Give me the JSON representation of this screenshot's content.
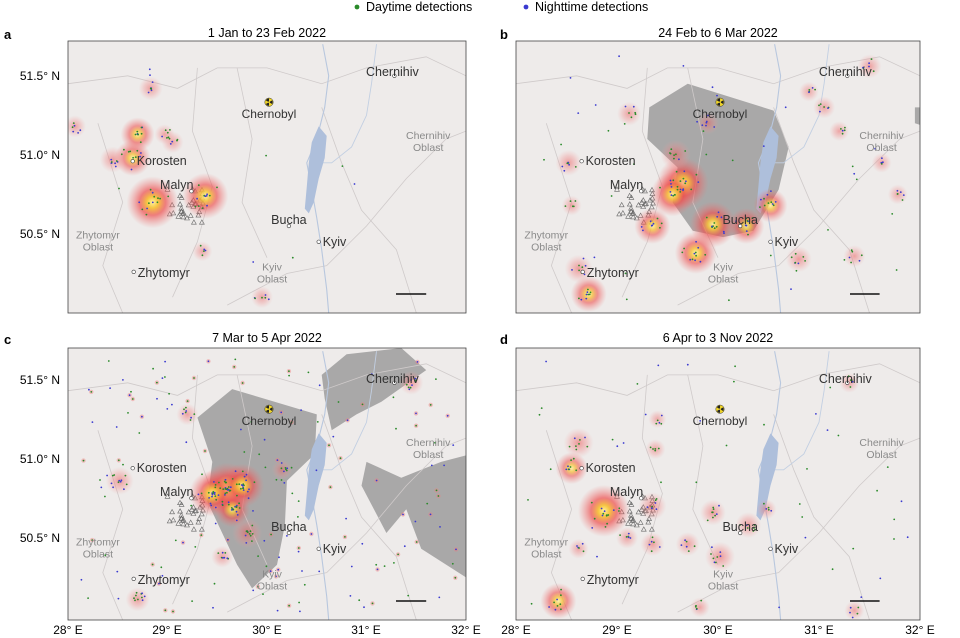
{
  "legend": {
    "day": {
      "label": "Daytime detections",
      "color": "#2a8a2a"
    },
    "night": {
      "label": "Nighttime detections",
      "color": "#3a3ad0"
    }
  },
  "axes": {
    "lon_ticks": [
      {
        "value": 28,
        "label": "28° E"
      },
      {
        "value": 29,
        "label": "29° E"
      },
      {
        "value": 30,
        "label": "30° E"
      },
      {
        "value": 31,
        "label": "31° E"
      },
      {
        "value": 32,
        "label": "32° E"
      }
    ],
    "lat_ticks": [
      {
        "value": 51.5,
        "label": "51.5° N"
      },
      {
        "value": 51.0,
        "label": "51.0° N"
      },
      {
        "value": 50.5,
        "label": "50.5° N"
      }
    ]
  },
  "panels": [
    {
      "letter": "a",
      "title": "1 Jan to 23 Feb 2022",
      "occupied": false,
      "places": [
        {
          "name": "Chernihiv",
          "lon": 31.28,
          "lat": 51.5,
          "kind": "city"
        },
        {
          "name": "Chernobyl",
          "lon": 30.02,
          "lat": 51.27,
          "kind": "plant"
        },
        {
          "name": "Korosten",
          "lon": 28.65,
          "lat": 50.96,
          "kind": "city"
        },
        {
          "name": "Malyn",
          "lon": 29.24,
          "lat": 50.77,
          "kind": "city"
        },
        {
          "name": "Bucha",
          "lon": 30.22,
          "lat": 50.55,
          "kind": "city"
        },
        {
          "name": "Kyiv",
          "lon": 30.52,
          "lat": 50.45,
          "kind": "city"
        },
        {
          "name": "Zhytomyr",
          "lon": 28.66,
          "lat": 50.26,
          "kind": "city"
        }
      ],
      "regions": [
        {
          "name": "Zhytomyr\nOblast",
          "lon": 28.3,
          "lat": 50.47
        },
        {
          "name": "Chernihiv\nOblast",
          "lon": 31.62,
          "lat": 51.1
        },
        {
          "name": "Kyiv\nOblast",
          "lon": 30.05,
          "lat": 50.27
        }
      ],
      "fires": [
        {
          "lon": 28.85,
          "lat": 50.7,
          "i": 1.0
        },
        {
          "lon": 29.38,
          "lat": 50.74,
          "i": 0.85
        },
        {
          "lon": 28.65,
          "lat": 50.98,
          "i": 0.6
        },
        {
          "lon": 28.7,
          "lat": 51.13,
          "i": 0.55
        },
        {
          "lon": 28.45,
          "lat": 50.97,
          "i": 0.35
        },
        {
          "lon": 28.83,
          "lat": 51.42,
          "i": 0.3
        },
        {
          "lon": 28.07,
          "lat": 51.18,
          "i": 0.25
        },
        {
          "lon": 29.05,
          "lat": 51.08,
          "i": 0.25
        },
        {
          "lon": 29.35,
          "lat": 50.39,
          "i": 0.2
        },
        {
          "lon": 28.97,
          "lat": 51.13,
          "i": 0.2
        },
        {
          "lon": 29.95,
          "lat": 50.1,
          "i": 0.25
        }
      ]
    },
    {
      "letter": "b",
      "title": "24 Feb to 6 Mar 2022",
      "occupied": true,
      "places": [
        {
          "name": "Chernihiv",
          "lon": 31.28,
          "lat": 51.5,
          "kind": "city"
        },
        {
          "name": "Chernobyl",
          "lon": 30.02,
          "lat": 51.27,
          "kind": "plant"
        },
        {
          "name": "Korosten",
          "lon": 28.65,
          "lat": 50.96,
          "kind": "city"
        },
        {
          "name": "Malyn",
          "lon": 29.24,
          "lat": 50.77,
          "kind": "city"
        },
        {
          "name": "Bucha",
          "lon": 30.22,
          "lat": 50.55,
          "kind": "city"
        },
        {
          "name": "Kyiv",
          "lon": 30.52,
          "lat": 50.45,
          "kind": "city"
        },
        {
          "name": "Zhytomyr",
          "lon": 28.66,
          "lat": 50.26,
          "kind": "city"
        }
      ],
      "regions": [
        {
          "name": "Zhytomyr\nOblast",
          "lon": 28.3,
          "lat": 50.47
        },
        {
          "name": "Chernihiv\nOblast",
          "lon": 31.62,
          "lat": 51.1
        },
        {
          "name": "Kyiv\nOblast",
          "lon": 30.05,
          "lat": 50.27
        }
      ],
      "fires": [
        {
          "lon": 29.65,
          "lat": 50.82,
          "i": 1.0
        },
        {
          "lon": 29.55,
          "lat": 50.75,
          "i": 0.8
        },
        {
          "lon": 29.95,
          "lat": 50.56,
          "i": 0.85
        },
        {
          "lon": 29.78,
          "lat": 50.38,
          "i": 0.75
        },
        {
          "lon": 29.35,
          "lat": 50.55,
          "i": 0.6
        },
        {
          "lon": 30.28,
          "lat": 50.55,
          "i": 0.6
        },
        {
          "lon": 30.52,
          "lat": 50.68,
          "i": 0.55
        },
        {
          "lon": 29.58,
          "lat": 51.0,
          "i": 0.45
        },
        {
          "lon": 28.72,
          "lat": 50.12,
          "i": 0.6
        },
        {
          "lon": 28.62,
          "lat": 50.28,
          "i": 0.4
        },
        {
          "lon": 28.52,
          "lat": 50.95,
          "i": 0.35
        },
        {
          "lon": 29.12,
          "lat": 51.26,
          "i": 0.3
        },
        {
          "lon": 30.8,
          "lat": 50.34,
          "i": 0.35
        },
        {
          "lon": 31.5,
          "lat": 51.56,
          "i": 0.3
        },
        {
          "lon": 31.05,
          "lat": 51.3,
          "i": 0.25
        },
        {
          "lon": 30.9,
          "lat": 51.4,
          "i": 0.2
        },
        {
          "lon": 31.35,
          "lat": 50.36,
          "i": 0.25
        },
        {
          "lon": 31.62,
          "lat": 50.95,
          "i": 0.2
        },
        {
          "lon": 31.2,
          "lat": 51.15,
          "i": 0.2
        },
        {
          "lon": 29.9,
          "lat": 51.2,
          "i": 0.25
        },
        {
          "lon": 28.55,
          "lat": 50.68,
          "i": 0.2
        },
        {
          "lon": 31.78,
          "lat": 50.75,
          "i": 0.2
        }
      ]
    },
    {
      "letter": "c",
      "title": "7 Mar to 5 Apr 2022",
      "occupied": true,
      "places": [
        {
          "name": "Chernihiv",
          "lon": 31.28,
          "lat": 51.5,
          "kind": "city"
        },
        {
          "name": "Chernobyl",
          "lon": 30.02,
          "lat": 51.27,
          "kind": "plant"
        },
        {
          "name": "Korosten",
          "lon": 28.65,
          "lat": 50.96,
          "kind": "city"
        },
        {
          "name": "Malyn",
          "lon": 29.24,
          "lat": 50.77,
          "kind": "city"
        },
        {
          "name": "Bucha",
          "lon": 30.22,
          "lat": 50.55,
          "kind": "city"
        },
        {
          "name": "Kyiv",
          "lon": 30.52,
          "lat": 50.45,
          "kind": "city"
        },
        {
          "name": "Zhytomyr",
          "lon": 28.66,
          "lat": 50.26,
          "kind": "city"
        }
      ],
      "regions": [
        {
          "name": "Zhytomyr\nOblast",
          "lon": 28.3,
          "lat": 50.47
        },
        {
          "name": "Chernihiv\nOblast",
          "lon": 31.62,
          "lat": 51.1
        },
        {
          "name": "Kyiv\nOblast",
          "lon": 30.05,
          "lat": 50.27
        }
      ],
      "fires": [
        {
          "lon": 29.6,
          "lat": 50.83,
          "i": 1.0
        },
        {
          "lon": 29.45,
          "lat": 50.8,
          "i": 0.85
        },
        {
          "lon": 29.75,
          "lat": 50.85,
          "i": 0.8
        },
        {
          "lon": 29.65,
          "lat": 50.7,
          "i": 0.6
        },
        {
          "lon": 29.8,
          "lat": 50.55,
          "i": 0.45
        },
        {
          "lon": 28.52,
          "lat": 50.88,
          "i": 0.4
        },
        {
          "lon": 28.7,
          "lat": 50.13,
          "i": 0.3
        },
        {
          "lon": 31.45,
          "lat": 51.5,
          "i": 0.3
        },
        {
          "lon": 29.2,
          "lat": 51.3,
          "i": 0.25
        },
        {
          "lon": 30.15,
          "lat": 50.95,
          "i": 0.2
        },
        {
          "lon": 29.55,
          "lat": 50.4,
          "i": 0.25
        }
      ]
    },
    {
      "letter": "d",
      "title": "6 Apr to 3 Nov 2022",
      "occupied": false,
      "places": [
        {
          "name": "Chernihiv",
          "lon": 31.28,
          "lat": 51.5,
          "kind": "city"
        },
        {
          "name": "Chernobyl",
          "lon": 30.02,
          "lat": 51.27,
          "kind": "plant"
        },
        {
          "name": "Korosten",
          "lon": 28.65,
          "lat": 50.96,
          "kind": "city"
        },
        {
          "name": "Malyn",
          "lon": 29.24,
          "lat": 50.77,
          "kind": "city"
        },
        {
          "name": "Bucha",
          "lon": 30.22,
          "lat": 50.55,
          "kind": "city"
        },
        {
          "name": "Kyiv",
          "lon": 30.52,
          "lat": 50.45,
          "kind": "city"
        },
        {
          "name": "Zhytomyr",
          "lon": 28.66,
          "lat": 50.26,
          "kind": "city"
        }
      ],
      "regions": [
        {
          "name": "Zhytomyr\nOblast",
          "lon": 28.3,
          "lat": 50.47
        },
        {
          "name": "Chernihiv\nOblast",
          "lon": 31.62,
          "lat": 51.1
        },
        {
          "name": "Kyiv\nOblast",
          "lon": 30.05,
          "lat": 50.27
        }
      ],
      "fires": [
        {
          "lon": 28.87,
          "lat": 50.69,
          "i": 1.0
        },
        {
          "lon": 28.42,
          "lat": 50.12,
          "i": 0.6
        },
        {
          "lon": 28.55,
          "lat": 50.96,
          "i": 0.5
        },
        {
          "lon": 28.62,
          "lat": 51.12,
          "i": 0.45
        },
        {
          "lon": 29.35,
          "lat": 50.72,
          "i": 0.4
        },
        {
          "lon": 30.02,
          "lat": 50.4,
          "i": 0.45
        },
        {
          "lon": 29.95,
          "lat": 50.68,
          "i": 0.35
        },
        {
          "lon": 30.3,
          "lat": 50.6,
          "i": 0.35
        },
        {
          "lon": 29.35,
          "lat": 50.48,
          "i": 0.3
        },
        {
          "lon": 29.7,
          "lat": 50.48,
          "i": 0.3
        },
        {
          "lon": 29.1,
          "lat": 50.52,
          "i": 0.25
        },
        {
          "lon": 29.38,
          "lat": 51.08,
          "i": 0.2
        },
        {
          "lon": 28.62,
          "lat": 50.45,
          "i": 0.2
        },
        {
          "lon": 29.82,
          "lat": 50.08,
          "i": 0.2
        },
        {
          "lon": 31.35,
          "lat": 50.06,
          "i": 0.2
        },
        {
          "lon": 30.48,
          "lat": 50.7,
          "i": 0.2
        },
        {
          "lon": 31.3,
          "lat": 51.5,
          "i": 0.2
        },
        {
          "lon": 29.4,
          "lat": 51.27,
          "i": 0.15
        }
      ]
    }
  ]
}
